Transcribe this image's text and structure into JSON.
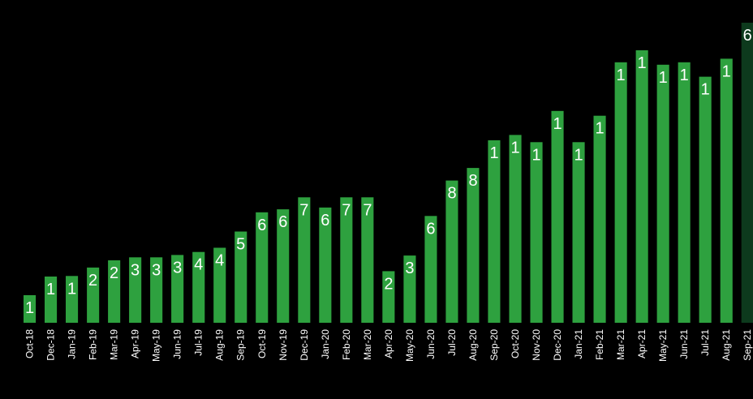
{
  "chart_data": {
    "type": "bar",
    "categories": [
      "Oct-18",
      "Dec-18",
      "Jan-19",
      "Feb-19",
      "Mar-19",
      "Apr-19",
      "May-19",
      "Jun-19",
      "Jul-19",
      "Aug-19",
      "Sep-19",
      "Oct-19",
      "Nov-19",
      "Dec-19",
      "Jan-20",
      "Feb-20",
      "Mar-20",
      "Apr-20",
      "May-20",
      "Jun-20",
      "Jul-20",
      "Aug-20",
      "Sep-20",
      "Oct-20",
      "Nov-20",
      "Dec-20",
      "Jan-21",
      "Feb-21",
      "Mar-21",
      "Apr-21",
      "May-21",
      "Jun-21",
      "Jul-21",
      "Aug-21",
      "Sep-21"
    ],
    "values": [
      46000,
      77000,
      78000,
      92000,
      104000,
      109000,
      109000,
      113000,
      118000,
      125000,
      152000,
      184000,
      189000,
      209000,
      192000,
      209000,
      209000,
      86000,
      112000,
      178000,
      237000,
      258000,
      304000,
      313000,
      301000,
      353000,
      301000,
      345000,
      434000,
      454000,
      430000,
      434000,
      410000,
      440000,
      500000
    ],
    "data_labels": [
      "1",
      "1",
      "1",
      "2",
      "2",
      "3",
      "3",
      "3",
      "4",
      "4",
      "5",
      "6",
      "6",
      "7",
      "6",
      "7",
      "7",
      "2",
      "3",
      "6",
      "8",
      "8",
      "1",
      "1",
      "1",
      "1",
      "1",
      "1",
      "1",
      "1",
      "1",
      "1",
      "1",
      "1",
      "6"
    ],
    "highlight_index": 34,
    "colors": {
      "bar": "#2ea13f",
      "bar_highlight": "#0d3a1d",
      "text": "#ffffff",
      "background": "#000000"
    },
    "grid": false,
    "legend": "none"
  }
}
